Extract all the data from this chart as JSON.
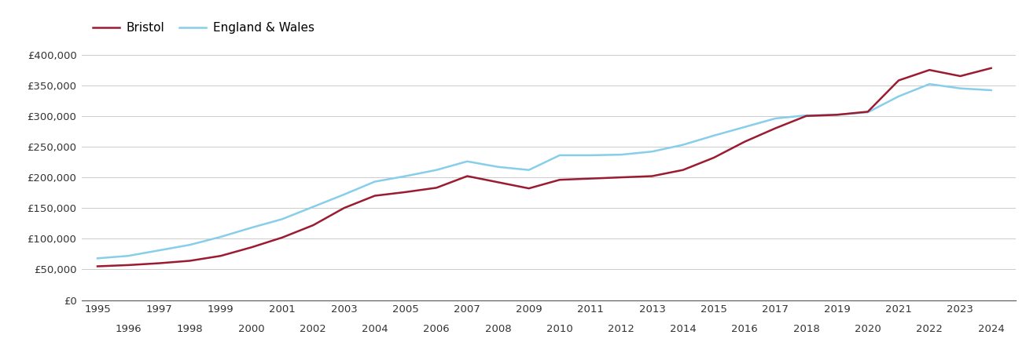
{
  "bristol": {
    "years": [
      1995,
      1996,
      1997,
      1998,
      1999,
      2000,
      2001,
      2002,
      2003,
      2004,
      2005,
      2006,
      2007,
      2008,
      2009,
      2010,
      2011,
      2012,
      2013,
      2014,
      2015,
      2016,
      2017,
      2018,
      2019,
      2020,
      2021,
      2022,
      2023,
      2024
    ],
    "values": [
      55000,
      57000,
      60000,
      64000,
      72000,
      86000,
      102000,
      122000,
      150000,
      170000,
      176000,
      183000,
      202000,
      192000,
      182000,
      196000,
      198000,
      200000,
      202000,
      212000,
      232000,
      258000,
      280000,
      300000,
      302000,
      307000,
      358000,
      375000,
      365000,
      378000
    ]
  },
  "england_wales": {
    "years": [
      1995,
      1996,
      1997,
      1998,
      1999,
      2000,
      2001,
      2002,
      2003,
      2004,
      2005,
      2006,
      2007,
      2008,
      2009,
      2010,
      2011,
      2012,
      2013,
      2014,
      2015,
      2016,
      2017,
      2018,
      2019,
      2020,
      2021,
      2022,
      2023,
      2024
    ],
    "values": [
      68000,
      72000,
      81000,
      90000,
      103000,
      118000,
      132000,
      152000,
      172000,
      193000,
      202000,
      212000,
      226000,
      217000,
      212000,
      236000,
      236000,
      237000,
      242000,
      253000,
      268000,
      282000,
      296000,
      301000,
      302000,
      306000,
      332000,
      352000,
      345000,
      342000
    ]
  },
  "bristol_color": "#9b1b30",
  "ew_color": "#87ceeb",
  "background_color": "#ffffff",
  "grid_color": "#cccccc",
  "ylim": [
    0,
    420000
  ],
  "ytick_values": [
    0,
    50000,
    100000,
    150000,
    200000,
    250000,
    300000,
    350000,
    400000
  ],
  "xlim": [
    1994.5,
    2024.8
  ],
  "odd_years": [
    1995,
    1997,
    1999,
    2001,
    2003,
    2005,
    2007,
    2009,
    2011,
    2013,
    2015,
    2017,
    2019,
    2021,
    2023
  ],
  "even_years": [
    1996,
    1998,
    2000,
    2002,
    2004,
    2006,
    2008,
    2010,
    2012,
    2014,
    2016,
    2018,
    2020,
    2022,
    2024
  ],
  "legend_labels": [
    "Bristol",
    "England & Wales"
  ],
  "line_width": 1.8
}
